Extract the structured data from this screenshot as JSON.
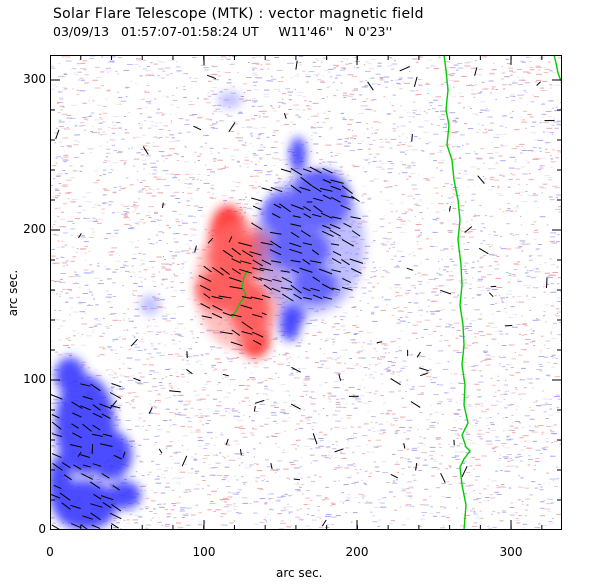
{
  "title": "Solar Flare Telescope (MTK) : vector magnetic field",
  "subtitle": "03/09/13   01:57:07-01:58:24 UT     W11'46''   N 0'23''",
  "axes": {
    "xlabel": "arc sec.",
    "ylabel": "arc sec.",
    "xticks": [
      "0",
      "100",
      "200",
      "300"
    ],
    "yticks": [
      "0",
      "100",
      "200",
      "300"
    ]
  },
  "colors": {
    "positive_polarity": "#ff3030",
    "negative_polarity": "#3838ff",
    "neutral_line": "#00cc00",
    "vectors": "#000000",
    "frame": "#000000"
  }
}
